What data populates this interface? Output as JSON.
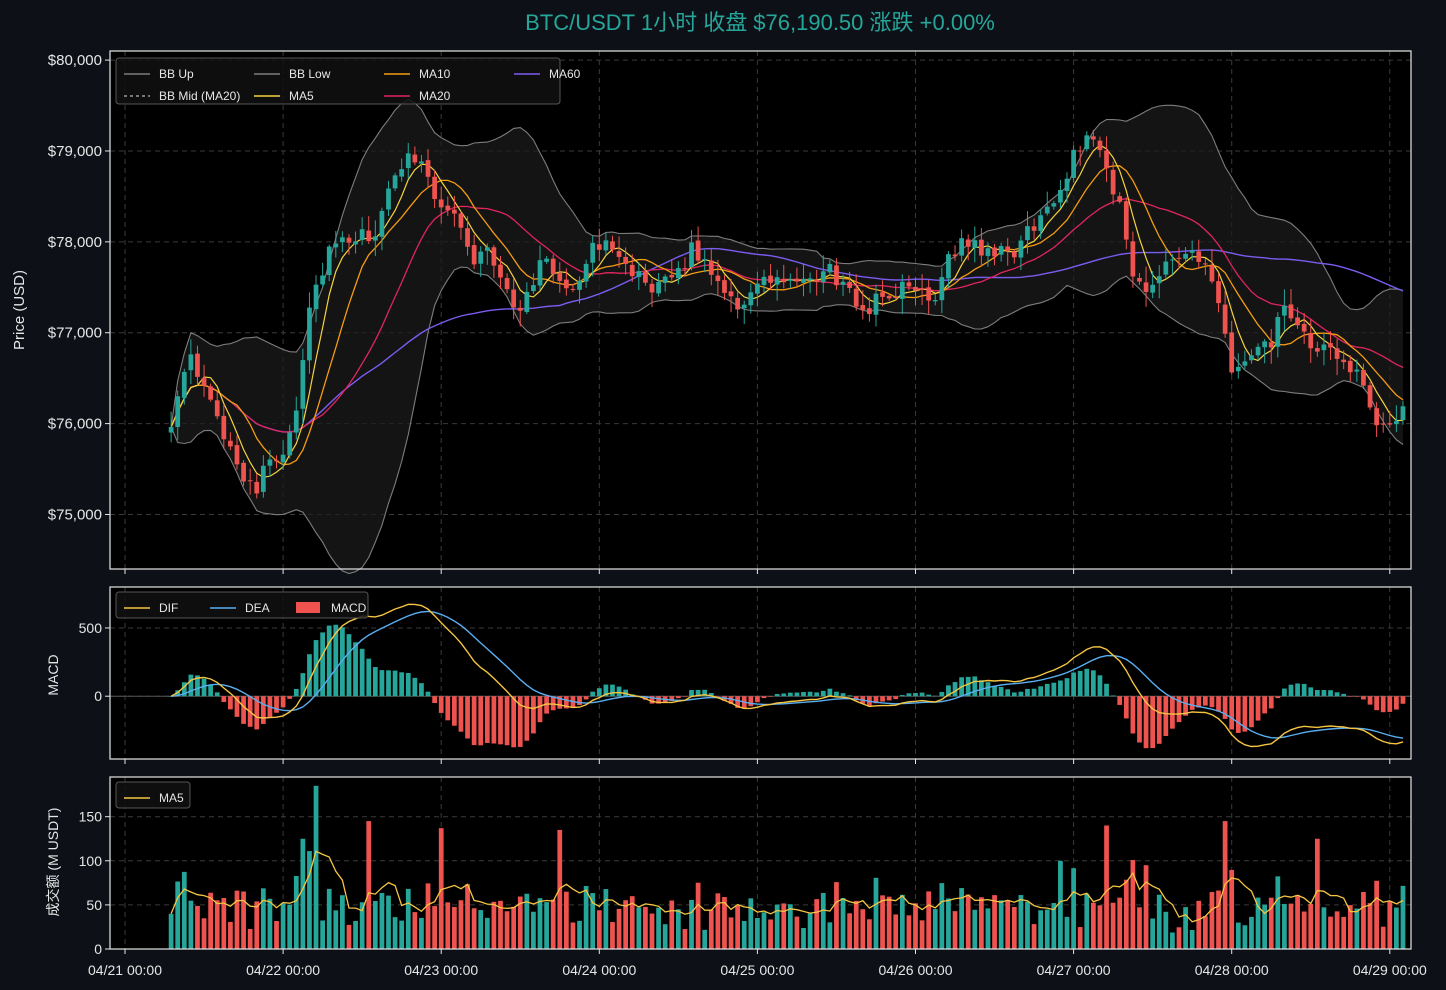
{
  "title": "BTC/USDT 1小时   收盘 $76,190.50   涨跌 +0.00%",
  "colors": {
    "background": "#0d1117",
    "plot_bg": "#000000",
    "axis": "#e6e6e6",
    "grid": "#3a3a3a",
    "title": "#26a69a",
    "up": "#26a69a",
    "down": "#ef5350",
    "bb_line": "#7d7d7d",
    "bb_mid": "#9a9a9a",
    "bb_fill": "#1c1c1c",
    "ma5": "#f5d33d",
    "ma10": "#f39c12",
    "ma20": "#e0245e",
    "ma60": "#7b5cf0",
    "dif": "#f5c542",
    "dea": "#5aaef0",
    "vol_ma5": "#f5c542"
  },
  "chart_data": [
    {
      "type": "candlestick",
      "name": "price",
      "ylabel": "Price (USD)",
      "ylim": [
        74400,
        80100
      ],
      "yticks": [
        75000,
        76000,
        77000,
        78000,
        79000,
        80000
      ],
      "ytick_labels": [
        "$75,000",
        "$76,000",
        "$77,000",
        "$78,000",
        "$79,000",
        "$80,000"
      ],
      "grid": true,
      "legend_position": "top-left",
      "legend": [
        {
          "label": "BB Up",
          "key": "bb_line",
          "style": "solid"
        },
        {
          "label": "BB Mid (MA20)",
          "key": "bb_mid",
          "style": "dashed"
        },
        {
          "label": "BB Low",
          "key": "bb_line",
          "style": "solid"
        },
        {
          "label": "MA5",
          "key": "ma5",
          "style": "solid"
        },
        {
          "label": "MA10",
          "key": "ma10",
          "style": "solid"
        },
        {
          "label": "MA20",
          "key": "ma20",
          "style": "solid"
        },
        {
          "label": "MA60",
          "key": "ma60",
          "style": "solid"
        }
      ],
      "last_close": 76190.5,
      "anchors": [
        [
          0,
          76050
        ],
        [
          3,
          76700
        ],
        [
          6,
          76200
        ],
        [
          9,
          75750
        ],
        [
          11,
          75450
        ],
        [
          13,
          75300
        ],
        [
          15,
          75600
        ],
        [
          17,
          75700
        ],
        [
          19,
          76200
        ],
        [
          21,
          77300
        ],
        [
          24,
          77900
        ],
        [
          27,
          78000
        ],
        [
          31,
          78100
        ],
        [
          34,
          78700
        ],
        [
          36,
          79000
        ],
        [
          38,
          78900
        ],
        [
          40,
          78500
        ],
        [
          43,
          78300
        ],
        [
          46,
          77800
        ],
        [
          48,
          77900
        ],
        [
          51,
          77500
        ],
        [
          53,
          77200
        ],
        [
          56,
          77800
        ],
        [
          59,
          77600
        ],
        [
          61,
          77500
        ],
        [
          64,
          77900
        ],
        [
          67,
          78000
        ],
        [
          70,
          77700
        ],
        [
          73,
          77400
        ],
        [
          76,
          77600
        ],
        [
          79,
          77900
        ],
        [
          82,
          77700
        ],
        [
          86,
          77300
        ],
        [
          89,
          77500
        ],
        [
          92,
          77600
        ],
        [
          96,
          77500
        ],
        [
          100,
          77700
        ],
        [
          103,
          77400
        ],
        [
          105,
          77250
        ],
        [
          108,
          77400
        ],
        [
          112,
          77500
        ],
        [
          116,
          77400
        ],
        [
          118,
          77900
        ],
        [
          121,
          78000
        ],
        [
          125,
          77850
        ],
        [
          128,
          77900
        ],
        [
          131,
          78200
        ],
        [
          135,
          78500
        ],
        [
          137,
          79000
        ],
        [
          140,
          79200
        ],
        [
          142,
          78800
        ],
        [
          144,
          78400
        ],
        [
          146,
          77600
        ],
        [
          148,
          77500
        ],
        [
          151,
          77800
        ],
        [
          154,
          77900
        ],
        [
          157,
          77700
        ],
        [
          159,
          77300
        ],
        [
          161,
          76600
        ],
        [
          164,
          76700
        ],
        [
          167,
          76900
        ],
        [
          169,
          77300
        ],
        [
          171,
          77000
        ],
        [
          174,
          76800
        ],
        [
          177,
          76750
        ],
        [
          180,
          76600
        ],
        [
          182,
          76100
        ],
        [
          184,
          75900
        ],
        [
          186,
          76050
        ],
        [
          187,
          76190.5
        ]
      ]
    },
    {
      "type": "bar+line",
      "name": "macd",
      "ylabel": "MACD",
      "ylim": [
        -460,
        800
      ],
      "yticks": [
        0,
        500
      ],
      "ytick_labels": [
        "0",
        "500"
      ],
      "legend_position": "top-left",
      "legend": [
        {
          "label": "DIF",
          "key": "dif"
        },
        {
          "label": "DEA",
          "key": "dea"
        },
        {
          "label": "MACD",
          "key": "down"
        }
      ]
    },
    {
      "type": "bar+line",
      "name": "volume",
      "ylabel": "成交额 (M USDT)",
      "ylim": [
        0,
        195
      ],
      "yticks": [
        0,
        50,
        100,
        150
      ],
      "ytick_labels": [
        "0",
        "50",
        "100",
        "150"
      ],
      "legend_position": "top-left",
      "legend": [
        {
          "label": "MA5",
          "key": "vol_ma5"
        }
      ],
      "spikes": [
        [
          20,
          125
        ],
        [
          22,
          185
        ],
        [
          30,
          145
        ],
        [
          41,
          137
        ],
        [
          59,
          135
        ],
        [
          142,
          140
        ],
        [
          160,
          145
        ],
        [
          135,
          100
        ],
        [
          148,
          95
        ],
        [
          174,
          125
        ]
      ]
    }
  ],
  "x_axis": {
    "tick_labels": [
      "04/21 00:00",
      "04/22 00:00",
      "04/23 00:00",
      "04/24 00:00",
      "04/25 00:00",
      "04/26 00:00",
      "04/27 00:00",
      "04/28 00:00",
      "04/29 00:00"
    ],
    "first_candle_hour": 7,
    "candle_count": 188
  }
}
